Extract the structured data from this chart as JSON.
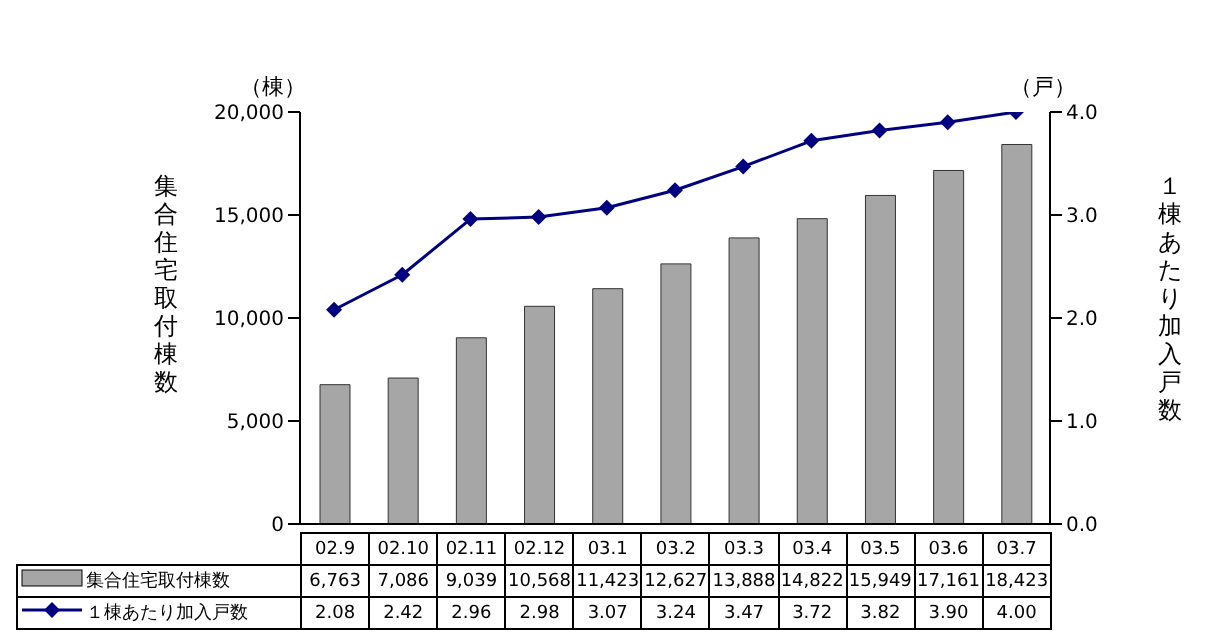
{
  "chart_data": {
    "type": "bar",
    "categories": [
      "02.9",
      "02.10",
      "02.11",
      "02.12",
      "03.1",
      "03.2",
      "03.3",
      "03.4",
      "03.5",
      "03.6",
      "03.7"
    ],
    "ylabel": "集合住宅取付棟数",
    "y2label": "１棟あたり加入戸数",
    "annotations": [
      "（棟）",
      "（戸）"
    ],
    "series": [
      {
        "name": "集合住宅取付棟数",
        "color": "#a6a6a6",
        "values": [
          6763,
          7086,
          9039,
          10568,
          11423,
          12627,
          13888,
          14822,
          15949,
          17161,
          18423
        ],
        "value_labels": [
          "6,763",
          "7,086",
          "9,039",
          "10,568",
          "11,423",
          "12,627",
          "13,888",
          "14,822",
          "15,949",
          "17,161",
          "18,423"
        ]
      },
      {
        "name": "１棟あたり加入戸数",
        "type": "line",
        "axis": "y2",
        "color": "#000080",
        "marker": "diamond",
        "values": [
          2.08,
          2.42,
          2.96,
          2.98,
          3.07,
          3.24,
          3.47,
          3.72,
          3.82,
          3.9,
          4.0
        ],
        "value_labels": [
          "2.08",
          "2.42",
          "2.96",
          "2.98",
          "3.07",
          "3.24",
          "3.47",
          "3.72",
          "3.82",
          "3.90",
          "4.00"
        ]
      }
    ],
    "ylim": [
      0,
      20000
    ],
    "yticks": [
      0,
      {
        "value": 5000,
        "label": "5,000"
      },
      {
        "value": 10000,
        "label": "10,000"
      },
      {
        "value": 15000,
        "label": "15,000"
      },
      {
        "value": 20000,
        "label": "20,000"
      }
    ],
    "y2lim": [
      0,
      4
    ],
    "y2ticks": [
      {
        "value": 0,
        "label": "0.0"
      },
      {
        "value": 1,
        "label": "1.0"
      },
      {
        "value": 2,
        "label": "2.0"
      },
      {
        "value": 3,
        "label": "3.0"
      },
      {
        "value": 4,
        "label": "4.0"
      }
    ],
    "legend": "bottom"
  }
}
